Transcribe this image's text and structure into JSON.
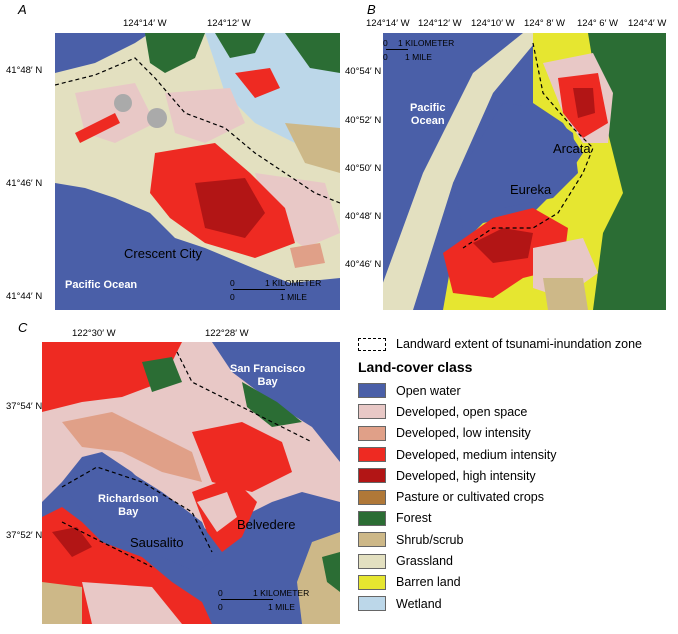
{
  "panels": {
    "a": {
      "label": "A",
      "lon_ticks": [
        "124°14′ W",
        "124°12′ W"
      ],
      "lat_ticks": [
        "41°48′ N",
        "41°46′ N",
        "41°44′ N"
      ],
      "places": [
        "Crescent City"
      ],
      "water": [
        "Pacific Ocean"
      ],
      "scale": {
        "km": "1 KILOMETER",
        "mi": "1 MILE",
        "zero": "0"
      }
    },
    "b": {
      "label": "B",
      "lon_ticks": [
        "124°14′ W",
        "124°12′ W",
        "124°10′ W",
        "124° 8′ W",
        "124° 6′ W",
        "124°4′ W"
      ],
      "lat_ticks": [
        "40°54′ N",
        "40°52′ N",
        "40°50′ N",
        "40°48′ N",
        "40°46′ N"
      ],
      "places": [
        "Arcata",
        "Eureka"
      ],
      "water": [
        "Pacific\nOcean"
      ],
      "scale": {
        "km": "1 KILOMETER",
        "mi": "1 MILE",
        "zero": "0"
      }
    },
    "c": {
      "label": "C",
      "lon_ticks": [
        "122°30′ W",
        "122°28′ W"
      ],
      "lat_ticks": [
        "37°54′ N",
        "37°52′ N"
      ],
      "places": [
        "Sausalito",
        "Belvedere"
      ],
      "water": [
        "San Francisco\nBay",
        "Richardson\nBay"
      ],
      "scale": {
        "km": "1 KILOMETER",
        "mi": "1 MILE",
        "zero": "0"
      }
    }
  },
  "legend": {
    "zone_label": "Landward extent of tsunami-inundation zone",
    "title": "Land-cover class",
    "classes": [
      {
        "name": "Open water",
        "color": "#4a5fa8"
      },
      {
        "name": "Developed, open space",
        "color": "#e8c8c6"
      },
      {
        "name": "Developed, low intensity",
        "color": "#e0a088"
      },
      {
        "name": "Developed, medium intensity",
        "color": "#ee2a22"
      },
      {
        "name": "Developed, high intensity",
        "color": "#b21515"
      },
      {
        "name": "Pasture or cultivated crops",
        "color": "#b07838"
      },
      {
        "name": "Forest",
        "color": "#2b6d34"
      },
      {
        "name": "Shrub/scrub",
        "color": "#cdb888"
      },
      {
        "name": "Grassland",
        "color": "#e3e0c0"
      },
      {
        "name": "Barren land",
        "color": "#e6e630"
      },
      {
        "name": "Wetland",
        "color": "#bcd7e9"
      }
    ]
  }
}
